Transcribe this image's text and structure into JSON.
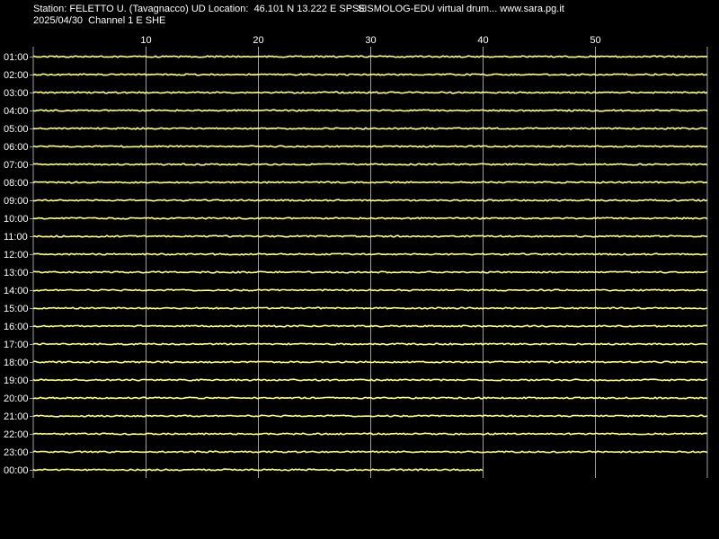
{
  "header": {
    "station_line": "Station: FELETTO U. (Tavagnacco) UD Location:  46.101 N 13.222 E SPSE",
    "software_line": "SISMOLOG-EDU virtual drum... www.sara.pg.it",
    "date_channel_line": "2025/04/30  Channel 1 E SHE"
  },
  "colors": {
    "background": "#000000",
    "trace": "#ffff80",
    "grid": "#a0a0a0",
    "text": "#ffffff"
  },
  "chart_data": {
    "type": "line",
    "title": "",
    "xlabel": "",
    "ylabel": "",
    "xlim": [
      0,
      60
    ],
    "x_ticks": [
      10,
      20,
      30,
      40,
      50
    ],
    "grid": true,
    "legend": "none",
    "categories": [
      "01:00",
      "02:00",
      "03:00",
      "04:00",
      "05:00",
      "06:00",
      "07:00",
      "08:00",
      "09:00",
      "10:00",
      "11:00",
      "12:00",
      "13:00",
      "14:00",
      "15:00",
      "16:00",
      "17:00",
      "18:00",
      "19:00",
      "20:00",
      "21:00",
      "22:00",
      "23:00",
      "00:00"
    ],
    "traces": [
      {
        "hour": "01:00",
        "minutes": 60
      },
      {
        "hour": "02:00",
        "minutes": 60
      },
      {
        "hour": "03:00",
        "minutes": 60
      },
      {
        "hour": "04:00",
        "minutes": 60
      },
      {
        "hour": "05:00",
        "minutes": 60
      },
      {
        "hour": "06:00",
        "minutes": 60
      },
      {
        "hour": "07:00",
        "minutes": 60
      },
      {
        "hour": "08:00",
        "minutes": 60
      },
      {
        "hour": "09:00",
        "minutes": 60
      },
      {
        "hour": "10:00",
        "minutes": 60
      },
      {
        "hour": "11:00",
        "minutes": 60
      },
      {
        "hour": "12:00",
        "minutes": 60
      },
      {
        "hour": "13:00",
        "minutes": 60
      },
      {
        "hour": "14:00",
        "minutes": 60
      },
      {
        "hour": "15:00",
        "minutes": 60
      },
      {
        "hour": "16:00",
        "minutes": 60
      },
      {
        "hour": "17:00",
        "minutes": 60
      },
      {
        "hour": "18:00",
        "minutes": 60
      },
      {
        "hour": "19:00",
        "minutes": 60
      },
      {
        "hour": "20:00",
        "minutes": 60
      },
      {
        "hour": "21:00",
        "minutes": 60
      },
      {
        "hour": "22:00",
        "minutes": 60
      },
      {
        "hour": "23:00",
        "minutes": 60
      },
      {
        "hour": "00:00",
        "minutes": 40
      }
    ]
  }
}
